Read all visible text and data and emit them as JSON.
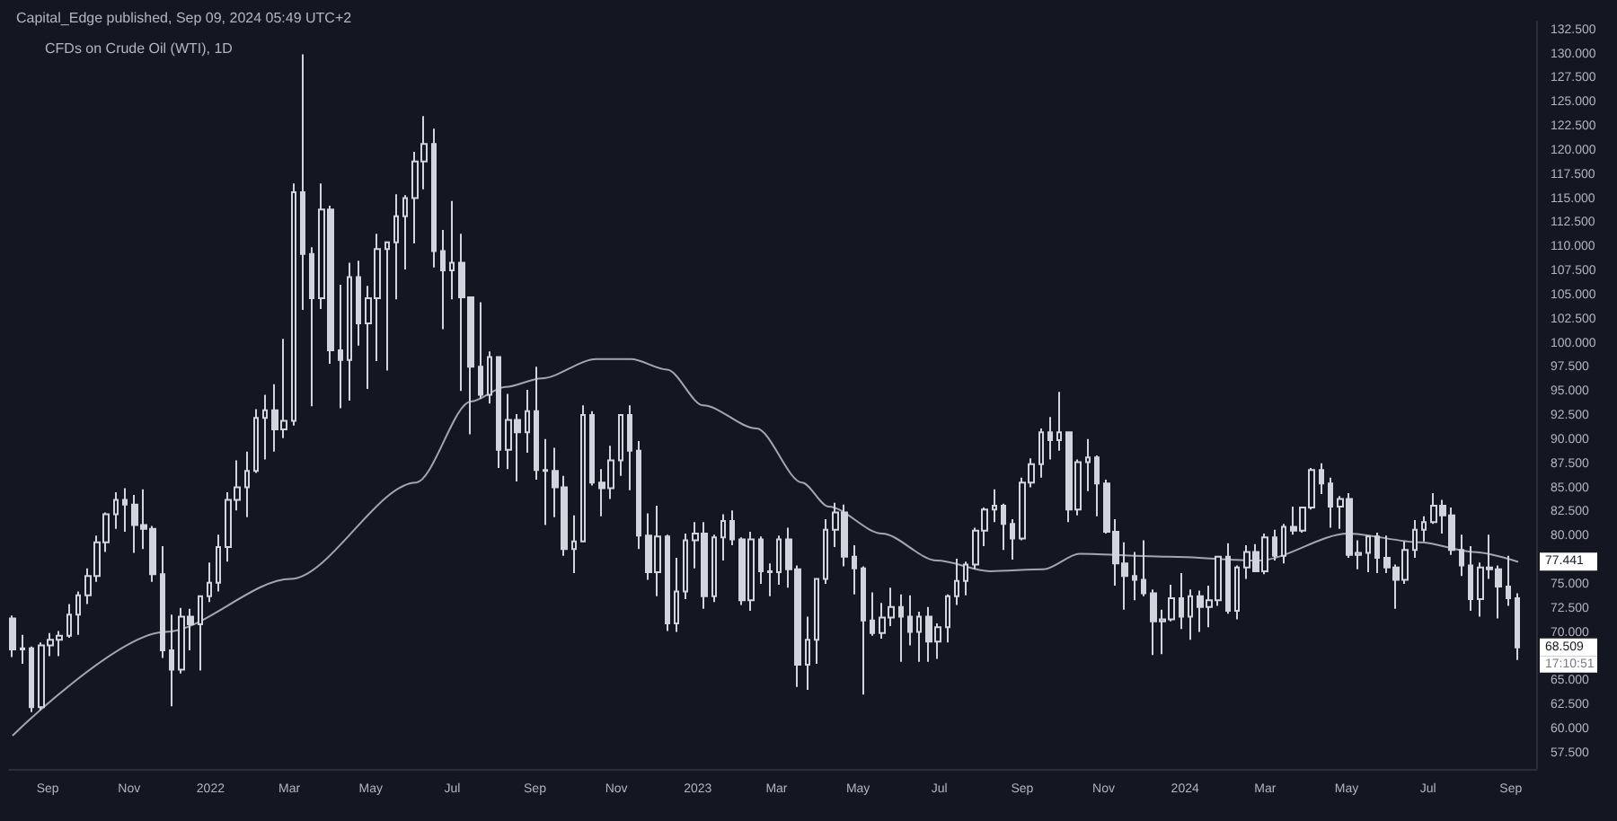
{
  "chart_data": {
    "type": "candlestick",
    "title": "CFDs on Crude Oil (WTI), 1D",
    "subtitle": "Capital_Edge published, Sep 09, 2024 05:49 UTC+2",
    "xlim": [
      "2021-08-03",
      "2024-09-20"
    ],
    "xticks": [
      {
        "value": "2021-09-01",
        "label": "Sep"
      },
      {
        "value": "2021-11-01",
        "label": "Nov"
      },
      {
        "value": "2022-01-01",
        "label": "2022"
      },
      {
        "value": "2022-03-01",
        "label": "Mar"
      },
      {
        "value": "2022-05-01",
        "label": "May"
      },
      {
        "value": "2022-07-01",
        "label": "Jul"
      },
      {
        "value": "2022-09-01",
        "label": "Sep"
      },
      {
        "value": "2022-11-01",
        "label": "Nov"
      },
      {
        "value": "2023-01-01",
        "label": "2023"
      },
      {
        "value": "2023-03-01",
        "label": "Mar"
      },
      {
        "value": "2023-05-01",
        "label": "May"
      },
      {
        "value": "2023-07-01",
        "label": "Jul"
      },
      {
        "value": "2023-09-01",
        "label": "Sep"
      },
      {
        "value": "2023-11-01",
        "label": "Nov"
      },
      {
        "value": "2024-01-01",
        "label": "2024"
      },
      {
        "value": "2024-03-01",
        "label": "Mar"
      },
      {
        "value": "2024-05-01",
        "label": "May"
      },
      {
        "value": "2024-07-01",
        "label": "Jul"
      },
      {
        "value": "2024-09-01",
        "label": "Sep"
      }
    ],
    "ylim": [
      55.9,
      133.4
    ],
    "yticks": [
      {
        "value": 57.5,
        "label": "57.500"
      },
      {
        "value": 60,
        "label": "60.000"
      },
      {
        "value": 62.5,
        "label": "62.500"
      },
      {
        "value": 65,
        "label": "65.000"
      },
      {
        "value": 70,
        "label": "70.000"
      },
      {
        "value": 72.5,
        "label": "72.500"
      },
      {
        "value": 75,
        "label": "75.000"
      },
      {
        "value": 80,
        "label": "80.000"
      },
      {
        "value": 82.5,
        "label": "82.500"
      },
      {
        "value": 85,
        "label": "85.000"
      },
      {
        "value": 87.5,
        "label": "87.500"
      },
      {
        "value": 90,
        "label": "90.000"
      },
      {
        "value": 92.5,
        "label": "92.500"
      },
      {
        "value": 95,
        "label": "95.000"
      },
      {
        "value": 97.5,
        "label": "97.500"
      },
      {
        "value": 100,
        "label": "100.000"
      },
      {
        "value": 102.5,
        "label": "102.500"
      },
      {
        "value": 105,
        "label": "105.000"
      },
      {
        "value": 107.5,
        "label": "107.500"
      },
      {
        "value": 110,
        "label": "110.000"
      },
      {
        "value": 112.5,
        "label": "112.500"
      },
      {
        "value": 115,
        "label": "115.000"
      },
      {
        "value": 117.5,
        "label": "117.500"
      },
      {
        "value": 120,
        "label": "120.000"
      },
      {
        "value": 122.5,
        "label": "122.500"
      },
      {
        "value": 125,
        "label": "125.000"
      },
      {
        "value": 127.5,
        "label": "127.500"
      },
      {
        "value": 130,
        "label": "130.000"
      },
      {
        "value": 132.5,
        "label": "132.500"
      }
    ],
    "grid": false,
    "annotations": [
      "68.509",
      "77.441",
      "17:10:51"
    ],
    "series": [
      {
        "color": "#d1d4dc",
        "x": [
          "2021-08-06",
          "2021-08-13",
          "2021-08-20",
          "2021-08-27",
          "2021-09-03",
          "2021-09-10",
          "2021-09-17",
          "2021-09-24",
          "2021-10-01",
          "2021-10-08",
          "2021-10-15",
          "2021-10-22",
          "2021-10-29",
          "2021-11-05",
          "2021-11-12",
          "2021-11-19",
          "2021-11-26",
          "2021-12-03",
          "2021-12-10",
          "2021-12-17",
          "2021-12-24",
          "2021-12-31",
          "2022-01-07",
          "2022-01-14",
          "2022-01-21",
          "2022-01-28",
          "2022-02-04",
          "2022-02-11",
          "2022-02-18",
          "2022-02-25",
          "2022-03-04",
          "2022-03-11",
          "2022-03-18",
          "2022-03-25",
          "2022-04-01",
          "2022-04-08",
          "2022-04-15",
          "2022-04-22",
          "2022-04-29",
          "2022-05-06",
          "2022-05-13",
          "2022-05-20",
          "2022-05-27",
          "2022-06-03",
          "2022-06-10",
          "2022-06-17",
          "2022-06-24",
          "2022-07-01",
          "2022-07-08",
          "2022-07-15",
          "2022-07-22",
          "2022-07-29",
          "2022-08-05",
          "2022-08-12",
          "2022-08-19",
          "2022-08-26",
          "2022-09-02",
          "2022-09-09",
          "2022-09-16",
          "2022-09-23",
          "2022-09-30",
          "2022-10-07",
          "2022-10-14",
          "2022-10-21",
          "2022-10-28",
          "2022-11-04",
          "2022-11-11",
          "2022-11-18",
          "2022-11-25",
          "2022-12-02",
          "2022-12-09",
          "2022-12-16",
          "2022-12-23",
          "2022-12-30",
          "2023-01-06",
          "2023-01-13",
          "2023-01-20",
          "2023-01-27",
          "2023-02-03",
          "2023-02-10",
          "2023-02-17",
          "2023-02-24",
          "2023-03-03",
          "2023-03-10",
          "2023-03-17",
          "2023-03-24",
          "2023-03-31",
          "2023-04-07",
          "2023-04-14",
          "2023-04-21",
          "2023-04-28",
          "2023-05-05",
          "2023-05-12",
          "2023-05-19",
          "2023-05-26",
          "2023-06-02",
          "2023-06-09",
          "2023-06-16",
          "2023-06-23",
          "2023-06-30",
          "2023-07-07",
          "2023-07-14",
          "2023-07-21",
          "2023-07-28",
          "2023-08-04",
          "2023-08-11",
          "2023-08-18",
          "2023-08-25",
          "2023-09-01",
          "2023-09-08",
          "2023-09-15",
          "2023-09-22",
          "2023-09-29",
          "2023-10-06",
          "2023-10-13",
          "2023-10-20",
          "2023-10-27",
          "2023-11-03",
          "2023-11-10",
          "2023-11-17",
          "2023-11-24",
          "2023-12-01",
          "2023-12-08",
          "2023-12-15",
          "2023-12-22",
          "2023-12-29",
          "2024-01-05",
          "2024-01-12",
          "2024-01-19",
          "2024-01-26",
          "2024-02-02",
          "2024-02-09",
          "2024-02-16",
          "2024-02-23",
          "2024-03-01",
          "2024-03-08",
          "2024-03-15",
          "2024-03-22",
          "2024-03-29",
          "2024-04-05",
          "2024-04-12",
          "2024-04-19",
          "2024-04-26",
          "2024-05-03",
          "2024-05-10",
          "2024-05-17",
          "2024-05-24",
          "2024-05-31",
          "2024-06-07",
          "2024-06-14",
          "2024-06-21",
          "2024-06-28",
          "2024-07-05",
          "2024-07-12",
          "2024-07-19",
          "2024-07-26",
          "2024-08-02",
          "2024-08-09",
          "2024-08-16",
          "2024-08-23",
          "2024-08-30",
          "2024-09-06"
        ],
        "ohlc": [
          [
            71.5,
            71.8,
            67.5,
            68.3
          ],
          [
            68.3,
            69.8,
            66.8,
            68.4
          ],
          [
            68.4,
            68.6,
            61.8,
            62.3
          ],
          [
            62.3,
            69.0,
            62.0,
            68.7
          ],
          [
            68.7,
            70.0,
            67.6,
            69.3
          ],
          [
            69.3,
            70.2,
            67.6,
            69.7
          ],
          [
            69.7,
            73.0,
            69.5,
            71.9
          ],
          [
            71.9,
            74.3,
            69.8,
            73.9
          ],
          [
            73.9,
            76.7,
            73.0,
            75.9
          ],
          [
            75.9,
            80.1,
            75.3,
            79.4
          ],
          [
            79.4,
            82.5,
            78.4,
            82.3
          ],
          [
            82.3,
            84.6,
            80.8,
            83.8
          ],
          [
            83.8,
            85.0,
            80.5,
            83.3
          ],
          [
            83.3,
            84.3,
            78.3,
            81.2
          ],
          [
            81.2,
            84.9,
            78.7,
            80.8
          ],
          [
            80.8,
            81.1,
            75.3,
            76.1
          ],
          [
            76.1,
            79.0,
            67.4,
            68.2
          ],
          [
            68.2,
            71.9,
            62.4,
            66.2
          ],
          [
            66.2,
            72.6,
            65.8,
            71.7
          ],
          [
            71.7,
            72.5,
            68.2,
            70.9
          ],
          [
            70.9,
            73.9,
            66.1,
            73.8
          ],
          [
            73.8,
            77.3,
            73.2,
            75.2
          ],
          [
            75.2,
            80.2,
            74.3,
            78.9
          ],
          [
            78.9,
            84.6,
            77.4,
            83.8
          ],
          [
            83.8,
            87.9,
            82.7,
            85.1
          ],
          [
            85.1,
            88.8,
            82.0,
            86.8
          ],
          [
            86.8,
            93.2,
            86.6,
            92.3
          ],
          [
            92.3,
            94.7,
            88.0,
            93.1
          ],
          [
            93.1,
            95.8,
            88.8,
            91.1
          ],
          [
            91.1,
            100.5,
            90.2,
            92.0
          ],
          [
            92.0,
            116.6,
            91.5,
            115.7
          ],
          [
            115.7,
            130.0,
            103.5,
            109.3
          ],
          [
            109.3,
            110.0,
            93.5,
            104.7
          ],
          [
            104.7,
            116.6,
            103.6,
            113.9
          ],
          [
            113.9,
            114.3,
            97.9,
            99.3
          ],
          [
            99.3,
            106.1,
            93.3,
            98.3
          ],
          [
            98.3,
            108.4,
            94.1,
            106.9
          ],
          [
            106.9,
            108.6,
            99.8,
            102.1
          ],
          [
            102.1,
            106.0,
            95.3,
            104.7
          ],
          [
            104.7,
            111.4,
            98.2,
            109.8
          ],
          [
            109.8,
            110.5,
            97.2,
            110.5
          ],
          [
            110.5,
            115.5,
            104.6,
            113.2
          ],
          [
            113.2,
            115.4,
            107.7,
            115.1
          ],
          [
            115.1,
            119.9,
            110.4,
            118.9
          ],
          [
            118.9,
            123.6,
            116.0,
            120.7
          ],
          [
            120.7,
            122.3,
            107.9,
            109.6
          ],
          [
            109.6,
            111.8,
            101.5,
            107.6
          ],
          [
            107.6,
            114.8,
            104.6,
            108.4
          ],
          [
            108.4,
            111.4,
            95.1,
            104.8
          ],
          [
            104.8,
            104.9,
            90.6,
            97.6
          ],
          [
            97.6,
            104.3,
            94.3,
            94.7
          ],
          [
            94.7,
            99.2,
            93.8,
            98.6
          ],
          [
            98.6,
            98.7,
            87.1,
            89.0
          ],
          [
            89.0,
            94.8,
            87.0,
            92.1
          ],
          [
            92.1,
            92.7,
            85.7,
            90.8
          ],
          [
            90.8,
            95.2,
            88.7,
            93.0
          ],
          [
            93.0,
            97.6,
            85.9,
            86.9
          ],
          [
            86.9,
            90.1,
            81.2,
            86.8
          ],
          [
            86.8,
            89.2,
            82.0,
            85.1
          ],
          [
            85.1,
            86.3,
            78.0,
            78.7
          ],
          [
            78.7,
            82.2,
            76.2,
            79.5
          ],
          [
            79.5,
            93.6,
            79.5,
            92.6
          ],
          [
            92.6,
            93.0,
            85.3,
            85.6
          ],
          [
            85.6,
            87.0,
            82.1,
            85.0
          ],
          [
            85.0,
            89.4,
            83.9,
            87.9
          ],
          [
            87.9,
            92.6,
            86.3,
            92.6
          ],
          [
            92.6,
            93.6,
            84.8,
            88.9
          ],
          [
            88.9,
            89.9,
            78.7,
            80.1
          ],
          [
            80.1,
            82.4,
            75.5,
            76.3
          ],
          [
            76.3,
            83.2,
            73.8,
            80.0
          ],
          [
            80.0,
            80.2,
            70.2,
            71.0
          ],
          [
            71.0,
            77.8,
            70.1,
            74.3
          ],
          [
            74.3,
            80.3,
            73.5,
            79.6
          ],
          [
            79.6,
            81.5,
            76.7,
            80.3
          ],
          [
            80.3,
            81.5,
            72.5,
            73.8
          ],
          [
            73.8,
            80.2,
            73.2,
            79.9
          ],
          [
            79.9,
            82.3,
            77.5,
            81.6
          ],
          [
            81.6,
            82.7,
            79.1,
            79.7
          ],
          [
            79.7,
            79.9,
            72.9,
            73.4
          ],
          [
            73.4,
            80.5,
            72.3,
            79.7
          ],
          [
            79.7,
            80.0,
            75.1,
            76.4
          ],
          [
            76.4,
            77.2,
            73.8,
            76.3
          ],
          [
            76.3,
            80.1,
            75.0,
            79.7
          ],
          [
            79.7,
            80.9,
            74.7,
            76.6
          ],
          [
            76.6,
            77.0,
            64.4,
            66.7
          ],
          [
            66.7,
            71.7,
            64.1,
            69.3
          ],
          [
            69.3,
            75.7,
            66.8,
            75.6
          ],
          [
            75.6,
            81.8,
            75.1,
            80.7
          ],
          [
            80.7,
            83.5,
            78.9,
            82.5
          ],
          [
            82.5,
            83.3,
            76.9,
            77.9
          ],
          [
            77.9,
            79.1,
            74.0,
            76.7
          ],
          [
            76.7,
            76.9,
            63.6,
            71.3
          ],
          [
            71.3,
            74.2,
            69.7,
            70.0
          ],
          [
            70.0,
            73.1,
            69.4,
            71.6
          ],
          [
            71.6,
            74.7,
            70.7,
            72.7
          ],
          [
            72.7,
            74.0,
            67.0,
            71.7
          ],
          [
            71.7,
            73.9,
            68.7,
            70.1
          ],
          [
            70.1,
            72.2,
            67.0,
            71.7
          ],
          [
            71.7,
            72.7,
            67.0,
            69.1
          ],
          [
            69.1,
            71.0,
            67.3,
            70.6
          ],
          [
            70.6,
            74.0,
            69.0,
            73.8
          ],
          [
            73.8,
            77.7,
            72.9,
            75.4
          ],
          [
            75.4,
            77.4,
            73.9,
            77.1
          ],
          [
            77.1,
            80.9,
            76.6,
            80.6
          ],
          [
            80.6,
            83.0,
            79.0,
            82.8
          ],
          [
            82.8,
            84.9,
            81.5,
            83.2
          ],
          [
            83.2,
            83.4,
            78.6,
            81.3
          ],
          [
            81.3,
            81.8,
            77.6,
            79.8
          ],
          [
            79.8,
            86.1,
            79.6,
            85.6
          ],
          [
            85.6,
            88.1,
            85.1,
            87.5
          ],
          [
            87.5,
            91.2,
            86.1,
            90.8
          ],
          [
            90.8,
            92.4,
            88.0,
            90.0
          ],
          [
            90.0,
            95.0,
            88.9,
            90.8
          ],
          [
            90.8,
            90.8,
            81.5,
            82.8
          ],
          [
            82.8,
            88.0,
            82.2,
            87.7
          ],
          [
            87.7,
            90.1,
            84.7,
            88.2
          ],
          [
            88.2,
            88.4,
            82.1,
            85.5
          ],
          [
            85.5,
            85.9,
            80.3,
            80.5
          ],
          [
            80.5,
            81.8,
            74.9,
            77.2
          ],
          [
            77.2,
            79.4,
            72.4,
            75.9
          ],
          [
            75.9,
            78.4,
            73.4,
            75.5
          ],
          [
            75.5,
            79.6,
            73.8,
            74.1
          ],
          [
            74.1,
            74.5,
            67.7,
            71.2
          ],
          [
            71.2,
            72.4,
            67.8,
            71.4
          ],
          [
            71.4,
            75.0,
            71.2,
            73.6
          ],
          [
            73.6,
            76.2,
            70.4,
            71.7
          ],
          [
            71.7,
            74.5,
            69.3,
            73.8
          ],
          [
            73.8,
            74.4,
            70.1,
            72.7
          ],
          [
            72.7,
            74.9,
            70.6,
            73.4
          ],
          [
            73.4,
            78.0,
            72.8,
            77.9
          ],
          [
            77.9,
            79.3,
            72.0,
            72.3
          ],
          [
            72.3,
            77.0,
            71.4,
            76.8
          ],
          [
            76.8,
            79.1,
            75.6,
            78.4
          ],
          [
            78.4,
            79.2,
            76.4,
            76.4
          ],
          [
            76.4,
            80.3,
            76.1,
            79.9
          ],
          [
            79.9,
            80.7,
            77.5,
            78.0
          ],
          [
            78.0,
            81.3,
            77.2,
            81.0
          ],
          [
            81.0,
            83.1,
            80.2,
            80.6
          ],
          [
            80.6,
            83.1,
            80.4,
            83.0
          ],
          [
            83.0,
            87.1,
            82.8,
            86.9
          ],
          [
            86.9,
            87.6,
            84.4,
            85.5
          ],
          [
            85.5,
            86.1,
            80.9,
            83.1
          ],
          [
            83.1,
            84.2,
            80.8,
            83.9
          ],
          [
            83.9,
            84.5,
            77.8,
            78.1
          ],
          [
            78.1,
            79.6,
            76.6,
            78.3
          ],
          [
            78.3,
            80.1,
            76.3,
            80.0
          ],
          [
            80.0,
            80.4,
            76.2,
            77.8
          ],
          [
            77.8,
            80.1,
            76.2,
            76.8
          ],
          [
            76.8,
            77.1,
            72.5,
            75.5
          ],
          [
            75.5,
            79.5,
            75.1,
            78.6
          ],
          [
            78.6,
            81.7,
            77.8,
            80.7
          ],
          [
            80.7,
            82.1,
            79.5,
            81.5
          ],
          [
            81.5,
            84.5,
            81.3,
            83.2
          ],
          [
            83.2,
            83.8,
            80.3,
            82.2
          ],
          [
            82.2,
            83.0,
            78.1,
            78.6
          ],
          [
            78.6,
            80.2,
            75.9,
            77.0
          ],
          [
            77.0,
            79.0,
            72.3,
            73.5
          ],
          [
            73.5,
            77.3,
            71.7,
            76.8
          ],
          [
            76.8,
            80.2,
            75.6,
            76.6
          ],
          [
            76.6,
            77.0,
            71.5,
            74.8
          ],
          [
            74.8,
            78.0,
            72.8,
            73.6
          ],
          [
            73.6,
            74.1,
            67.2,
            68.509
          ]
        ]
      },
      {
        "type": "line",
        "color": "#a3a6af",
        "marker": "none",
        "line_style": "solid",
        "x": [
          "2021-08-06",
          "2021-11-28",
          "2022-03-02",
          "2022-06-04",
          "2022-07-15",
          "2022-08-10",
          "2022-09-06",
          "2022-10-17",
          "2022-11-12",
          "2022-12-09",
          "2023-01-05",
          "2023-02-14",
          "2023-03-20",
          "2023-04-09",
          "2023-05-19",
          "2023-06-29",
          "2023-08-08",
          "2023-09-17",
          "2023-10-14",
          "2023-12-20",
          "2024-02-25",
          "2024-05-02",
          "2024-06-25",
          "2024-08-04",
          "2024-09-06"
        ],
        "values": [
          59.4,
          70.1,
          75.6,
          85.6,
          94.0,
          95.5,
          96.4,
          98.4,
          98.4,
          97.3,
          93.6,
          91.2,
          85.6,
          83.1,
          80.3,
          77.5,
          76.4,
          76.6,
          78.2,
          77.9,
          77.5,
          80.3,
          79.4,
          78.4,
          77.4
        ]
      }
    ]
  }
}
